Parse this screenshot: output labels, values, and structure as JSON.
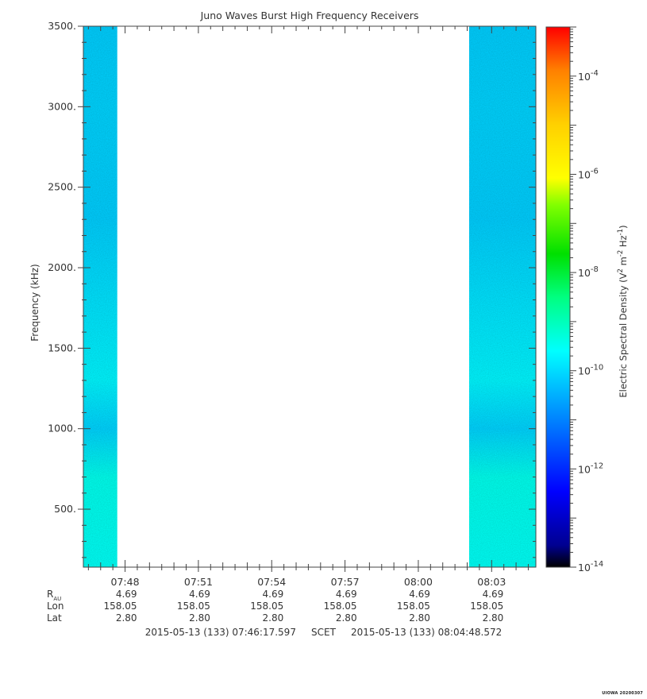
{
  "title": "Juno Waves Burst High Frequency Receivers",
  "ylabel": "Frequency (kHz)",
  "colorbar": {
    "label_main": "Electric Spectral Density (V",
    "label_sup1": "2",
    "label_mid": " m",
    "label_sup2": "-2",
    "label_mid2": " Hz",
    "label_sup3": "-1",
    "label_end": ")",
    "ticks": [
      {
        "base": "10",
        "exp": "-4",
        "value": 0.0001
      },
      {
        "base": "10",
        "exp": "-6",
        "value": 1e-06
      },
      {
        "base": "10",
        "exp": "-8",
        "value": 1e-08
      },
      {
        "base": "10",
        "exp": "-10",
        "value": 1e-10
      },
      {
        "base": "10",
        "exp": "-12",
        "value": 1e-12
      },
      {
        "base": "10",
        "exp": "-14",
        "value": 1e-14
      }
    ],
    "colors": [
      "#ff0000",
      "#ff8000",
      "#ffd000",
      "#ffff00",
      "#80ff00",
      "#00e000",
      "#00ff80",
      "#00ffff",
      "#0080ff",
      "#0000ff",
      "#000090",
      "#000000"
    ]
  },
  "chart_data": {
    "type": "heatmap",
    "title": "Juno Waves Burst High Frequency Receivers",
    "ylabel": "Frequency (kHz)",
    "ylim": [
      140,
      3500
    ],
    "yticks": [
      "500.",
      "1000.",
      "1500.",
      "2000.",
      "2500.",
      "3000.",
      "3500."
    ],
    "ytick_values": [
      500,
      1000,
      1500,
      2000,
      2500,
      3000,
      3500
    ],
    "xlim": [
      "07:46:17.597",
      "08:04:48.572"
    ],
    "xlim_minutes": [
      466.293,
      484.81
    ],
    "xticks": [
      "07:48",
      "07:51",
      "07:54",
      "07:57",
      "08:00",
      "08:03"
    ],
    "xtick_minutes": [
      468,
      471,
      474,
      477,
      480,
      483
    ],
    "zscale": "log",
    "zlim": [
      1e-14,
      0.001
    ],
    "data_intervals": [
      {
        "start": "07:46:17.597",
        "end": "07:47:41",
        "start_minutes": 466.293,
        "end_minutes": 467.68,
        "typical_value": 1e-10
      },
      {
        "start": "08:02:05",
        "end": "08:04:48.572",
        "start_minutes": 482.08,
        "end_minutes": 484.81,
        "typical_value": 1e-10
      }
    ],
    "band_profile": [
      {
        "freq": 200,
        "value": 3e-10
      },
      {
        "freq": 700,
        "value": 3.5e-10
      },
      {
        "freq": 1000,
        "value": 8e-11
      },
      {
        "freq": 1300,
        "value": 2e-10
      },
      {
        "freq": 1800,
        "value": 1.2e-10
      },
      {
        "freq": 2300,
        "value": 7e-11
      },
      {
        "freq": 3000,
        "value": 8e-11
      },
      {
        "freq": 3500,
        "value": 7e-11
      }
    ]
  },
  "ephemeris": {
    "rows": [
      {
        "label": "R",
        "label_sub": "AU",
        "values": [
          "4.69",
          "4.69",
          "4.69",
          "4.69",
          "4.69",
          "4.69"
        ]
      },
      {
        "label": "Lon",
        "label_sub": "",
        "values": [
          "158.05",
          "158.05",
          "158.05",
          "158.05",
          "158.05",
          "158.05"
        ]
      },
      {
        "label": "Lat",
        "label_sub": "",
        "values": [
          "2.80",
          "2.80",
          "2.80",
          "2.80",
          "2.80",
          "2.80"
        ]
      }
    ]
  },
  "footer": {
    "start": "2015-05-13 (133) 07:46:17.597",
    "middle": "SCET",
    "end": "2015-05-13 (133) 08:04:48.572"
  },
  "stamp": "UIOWA 20200307"
}
